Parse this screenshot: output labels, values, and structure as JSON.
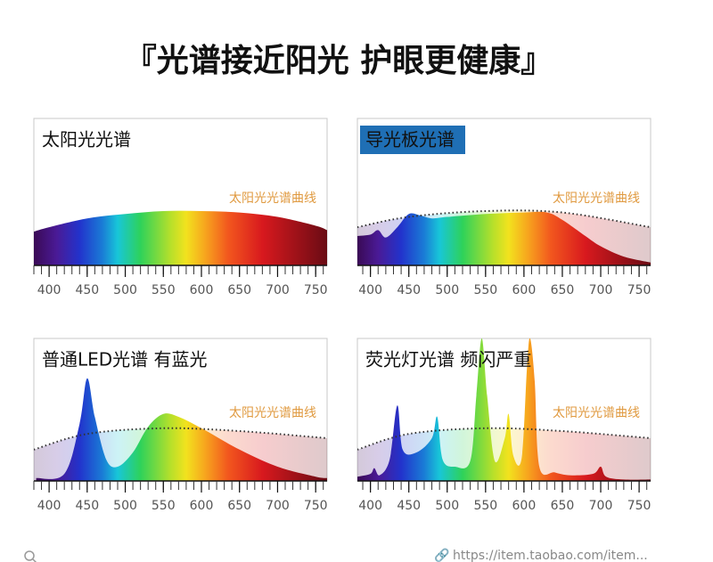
{
  "title": "『光谱接近阳光 护眼更健康』",
  "footer_url": "https://item.taobao.com/item...",
  "chart_data": [
    {
      "type": "area",
      "title": "太阳光光谱",
      "annotation": "太阳光光谱曲线",
      "xlim": [
        380,
        765
      ],
      "ylim": [
        0,
        100
      ],
      "xticks": [
        400,
        450,
        500,
        550,
        600,
        650,
        700,
        750
      ],
      "minor_xticks": [
        380,
        390,
        400,
        410,
        420,
        430,
        440,
        450,
        460,
        470,
        480,
        490,
        500,
        510,
        520,
        530,
        540,
        550,
        560,
        570,
        580,
        590,
        600,
        610,
        620,
        630,
        640,
        650,
        660,
        670,
        680,
        690,
        700,
        710,
        720,
        730,
        740,
        750,
        760
      ],
      "x": [
        380,
        400,
        450,
        500,
        550,
        600,
        650,
        700,
        750,
        765
      ],
      "values": [
        23,
        26,
        32,
        35,
        37,
        37,
        36,
        33,
        27,
        24
      ]
    },
    {
      "type": "area",
      "title": "导光板光谱",
      "title_box_color": "#1f6fb5",
      "annotation": "太阳光光谱曲线",
      "xlim": [
        383,
        765
      ],
      "ylim": [
        0,
        100
      ],
      "xticks": [
        400,
        450,
        500,
        550,
        600,
        650,
        700,
        750
      ],
      "minor_xticks": [
        390,
        400,
        410,
        420,
        430,
        440,
        450,
        460,
        470,
        480,
        490,
        500,
        510,
        520,
        530,
        540,
        550,
        560,
        570,
        580,
        590,
        600,
        610,
        620,
        630,
        640,
        650,
        660,
        670,
        680,
        690,
        700,
        710,
        720,
        730,
        740,
        750,
        760
      ],
      "x": [
        383,
        400,
        410,
        420,
        435,
        450,
        465,
        480,
        500,
        550,
        600,
        630,
        650,
        680,
        700,
        730,
        765
      ],
      "values": [
        20,
        21,
        24,
        19,
        26,
        35,
        34,
        32,
        33,
        35,
        36,
        36,
        31,
        20,
        13,
        6,
        2
      ],
      "reference_x": [
        383,
        450,
        550,
        650,
        765
      ],
      "reference_values": [
        26,
        33,
        37,
        36,
        26
      ]
    },
    {
      "type": "area",
      "title": "普通LED光谱 有蓝光",
      "annotation": "太阳光光谱曲线",
      "xlim": [
        380,
        765
      ],
      "ylim": [
        0,
        100
      ],
      "xticks": [
        400,
        450,
        500,
        550,
        600,
        650,
        700,
        750
      ],
      "minor_xticks": [
        380,
        390,
        400,
        410,
        420,
        430,
        440,
        450,
        460,
        470,
        480,
        490,
        500,
        510,
        520,
        530,
        540,
        550,
        560,
        570,
        580,
        590,
        600,
        610,
        620,
        630,
        640,
        650,
        660,
        670,
        680,
        690,
        700,
        710,
        720,
        730,
        740,
        750,
        760
      ],
      "x": [
        383,
        420,
        440,
        450,
        460,
        475,
        490,
        510,
        530,
        550,
        570,
        600,
        650,
        700,
        750,
        765
      ],
      "values": [
        2,
        5,
        40,
        72,
        45,
        15,
        10,
        20,
        38,
        47,
        45,
        37,
        22,
        10,
        3,
        2
      ],
      "reference_x": [
        380,
        450,
        550,
        650,
        765
      ],
      "reference_values": [
        22,
        33,
        37,
        35,
        30
      ]
    },
    {
      "type": "area",
      "title": "荧光灯光谱 频闪严重",
      "annotation": "太阳光光谱曲线",
      "xlim": [
        383,
        765
      ],
      "ylim": [
        0,
        100
      ],
      "xticks": [
        400,
        450,
        500,
        550,
        600,
        650,
        700,
        750
      ],
      "minor_xticks": [
        390,
        400,
        410,
        420,
        430,
        440,
        450,
        460,
        470,
        480,
        490,
        500,
        510,
        520,
        530,
        540,
        550,
        560,
        570,
        580,
        590,
        600,
        610,
        620,
        630,
        640,
        650,
        660,
        670,
        680,
        690,
        700,
        710,
        720,
        730,
        740,
        750,
        760
      ],
      "x": [
        383,
        400,
        405,
        412,
        425,
        435,
        442,
        460,
        480,
        487,
        494,
        510,
        530,
        538,
        545,
        552,
        562,
        575,
        580,
        586,
        597,
        604,
        608,
        614,
        620,
        640,
        660,
        690,
        700,
        707,
        730,
        765
      ],
      "values": [
        3,
        5,
        9,
        4,
        15,
        53,
        22,
        20,
        30,
        45,
        15,
        10,
        14,
        60,
        100,
        60,
        14,
        30,
        47,
        18,
        16,
        80,
        100,
        70,
        10,
        6,
        4,
        5,
        10,
        3,
        1,
        1
      ],
      "reference_x": [
        383,
        450,
        550,
        650,
        765
      ],
      "reference_values": [
        22,
        33,
        37,
        35,
        30
      ]
    }
  ]
}
